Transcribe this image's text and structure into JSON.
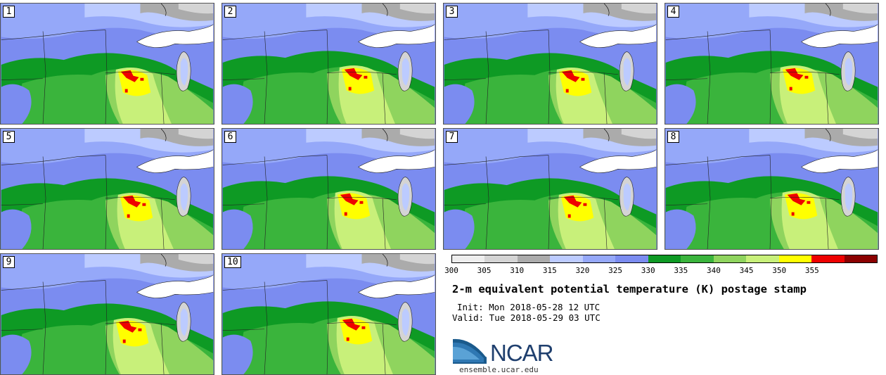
{
  "panels": [
    {
      "label": "1"
    },
    {
      "label": "2"
    },
    {
      "label": "3"
    },
    {
      "label": "4"
    },
    {
      "label": "5"
    },
    {
      "label": "6"
    },
    {
      "label": "7"
    },
    {
      "label": "8"
    },
    {
      "label": "9"
    },
    {
      "label": "10"
    }
  ],
  "colorbar": {
    "colors": [
      "#eeeeee",
      "#d4d4d4",
      "#ababab",
      "#bccbff",
      "#95a8f9",
      "#7b8cf0",
      "#0e9a24",
      "#3ab43c",
      "#8fd45e",
      "#c8f07a",
      "#ffff00",
      "#ee0000",
      "#8b0000"
    ],
    "ticks": [
      "300",
      "305",
      "310",
      "315",
      "320",
      "325",
      "330",
      "335",
      "340",
      "345",
      "350",
      "355"
    ]
  },
  "title": "2-m equivalent potential temperature (K) postage stamp",
  "init": "Init: Mon 2018-05-28 12 UTC",
  "valid": "Valid: Tue 2018-05-29 03 UTC",
  "logo": {
    "text": "NCAR",
    "site": "ensemble.ucar.edu"
  }
}
